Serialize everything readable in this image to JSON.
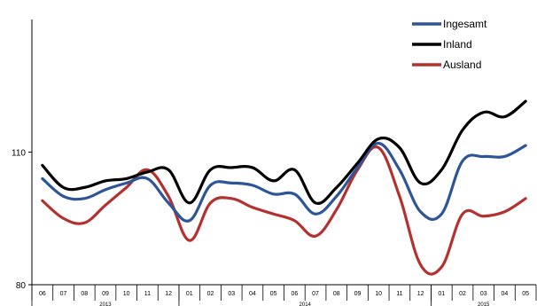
{
  "chart_data": {
    "type": "line",
    "categories": [
      "06",
      "07",
      "08",
      "09",
      "10",
      "11",
      "12",
      "01",
      "02",
      "03",
      "04",
      "05",
      "06",
      "07",
      "08",
      "09",
      "10",
      "11",
      "12",
      "01",
      "02",
      "03",
      "04",
      "05"
    ],
    "years": [
      {
        "label": "2013",
        "start_index": 0,
        "end_index": 6
      },
      {
        "label": "2014",
        "start_index": 7,
        "end_index": 18
      },
      {
        "label": "2015",
        "start_index": 19,
        "end_index": 23
      }
    ],
    "y_ticks": [
      80,
      110
    ],
    "ylim": [
      80,
      140
    ],
    "legend_position": "top-right",
    "series": [
      {
        "name": "Ingesamt",
        "color": "#2e5597",
        "values": [
          104,
          100,
          99.5,
          101.5,
          103,
          104,
          98.5,
          94.5,
          102.5,
          103,
          102.5,
          100.5,
          100.5,
          96,
          100,
          106.5,
          112,
          106,
          96.5,
          96,
          108,
          109,
          109,
          111.5
        ]
      },
      {
        "name": "Inland",
        "color": "#000000",
        "values": [
          107,
          102,
          102,
          103.5,
          104,
          105.5,
          106,
          98.5,
          106,
          106.5,
          106.5,
          103.5,
          106,
          98.5,
          102,
          107.5,
          113,
          111,
          103,
          106,
          115,
          119,
          118,
          121.5
        ]
      },
      {
        "name": "Ausland",
        "color": "#b3322f",
        "values": [
          99,
          95,
          94,
          98,
          102,
          106,
          100,
          90,
          98.5,
          99.5,
          97.5,
          96,
          94.5,
          91,
          97,
          106,
          111,
          100,
          84.5,
          84,
          96,
          95.5,
          96.5,
          99.5
        ]
      }
    ]
  }
}
